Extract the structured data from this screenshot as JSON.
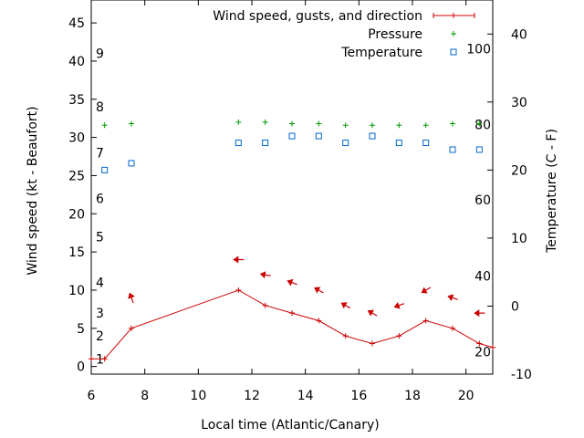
{
  "chart_data": {
    "type": "line",
    "xlabel": "Local time (Atlantic/Canary)",
    "ylabel": "Wind speed (kt - Beaufort)",
    "y2label": "Temperature (C - F)",
    "xlim": [
      6,
      21
    ],
    "ylim": [
      -1,
      48
    ],
    "y2lim": [
      -10,
      45
    ],
    "x_ticks": [
      6,
      8,
      10,
      12,
      14,
      16,
      18,
      20
    ],
    "y_ticks": [
      0,
      5,
      10,
      15,
      20,
      25,
      30,
      35,
      40,
      45
    ],
    "y2_ticks": [
      -10,
      0,
      10,
      20,
      30,
      40
    ],
    "beaufort_labels": [
      {
        "label": "1",
        "kt": 1
      },
      {
        "label": "2",
        "kt": 4
      },
      {
        "label": "3",
        "kt": 7
      },
      {
        "label": "4",
        "kt": 11
      },
      {
        "label": "5",
        "kt": 17
      },
      {
        "label": "6",
        "kt": 22
      },
      {
        "label": "7",
        "kt": 28
      },
      {
        "label": "8",
        "kt": 34
      },
      {
        "label": "9",
        "kt": 41
      }
    ],
    "fahrenheit_labels": [
      {
        "label": "20",
        "celsius": -6.7
      },
      {
        "label": "40",
        "celsius": 4.4
      },
      {
        "label": "60",
        "celsius": 15.6
      },
      {
        "label": "80",
        "celsius": 26.7
      },
      {
        "label": "100",
        "celsius": 37.8
      }
    ],
    "legend_position": "top-right",
    "series": [
      {
        "name": "Wind speed, gusts, and direction",
        "color": "#cc0000",
        "x": [
          6.0,
          6.5,
          7.5,
          11.5,
          12.5,
          13.5,
          14.5,
          15.5,
          16.5,
          17.5,
          18.5,
          19.5,
          20.5,
          21.0
        ],
        "y": [
          1,
          1,
          5,
          10,
          8,
          7,
          6,
          4,
          3,
          4,
          6,
          5,
          3,
          2.5
        ]
      },
      {
        "name": "Pressure",
        "color": "#009900",
        "x": [
          6.5,
          7.5,
          11.5,
          12.5,
          13.5,
          14.5,
          15.5,
          16.5,
          17.5,
          18.5,
          19.5,
          20.5
        ],
        "y": [
          31.6,
          31.8,
          32.0,
          32.0,
          31.8,
          31.8,
          31.6,
          31.6,
          31.6,
          31.6,
          31.8,
          31.8
        ]
      },
      {
        "name": "Temperature",
        "color": "#0066cc",
        "axis": "y2",
        "x": [
          6.5,
          7.5,
          11.5,
          12.5,
          13.5,
          14.5,
          15.5,
          16.5,
          17.5,
          18.5,
          19.5,
          20.5
        ],
        "y": [
          20,
          21,
          24,
          24,
          25,
          25,
          24,
          25,
          24,
          24,
          23,
          23
        ]
      }
    ],
    "wind_arrows": {
      "color": "#cc0000",
      "points": [
        {
          "x": 7.5,
          "y": 9,
          "direction_deg": 340
        },
        {
          "x": 11.5,
          "y": 14,
          "direction_deg": 270
        },
        {
          "x": 12.5,
          "y": 12,
          "direction_deg": 280
        },
        {
          "x": 13.5,
          "y": 11,
          "direction_deg": 290
        },
        {
          "x": 14.5,
          "y": 10,
          "direction_deg": 300
        },
        {
          "x": 15.5,
          "y": 8,
          "direction_deg": 300
        },
        {
          "x": 16.5,
          "y": 7,
          "direction_deg": 300
        },
        {
          "x": 17.5,
          "y": 8,
          "direction_deg": 250
        },
        {
          "x": 18.5,
          "y": 10,
          "direction_deg": 240
        },
        {
          "x": 19.5,
          "y": 9,
          "direction_deg": 290
        },
        {
          "x": 20.5,
          "y": 7,
          "direction_deg": 270
        }
      ]
    }
  }
}
